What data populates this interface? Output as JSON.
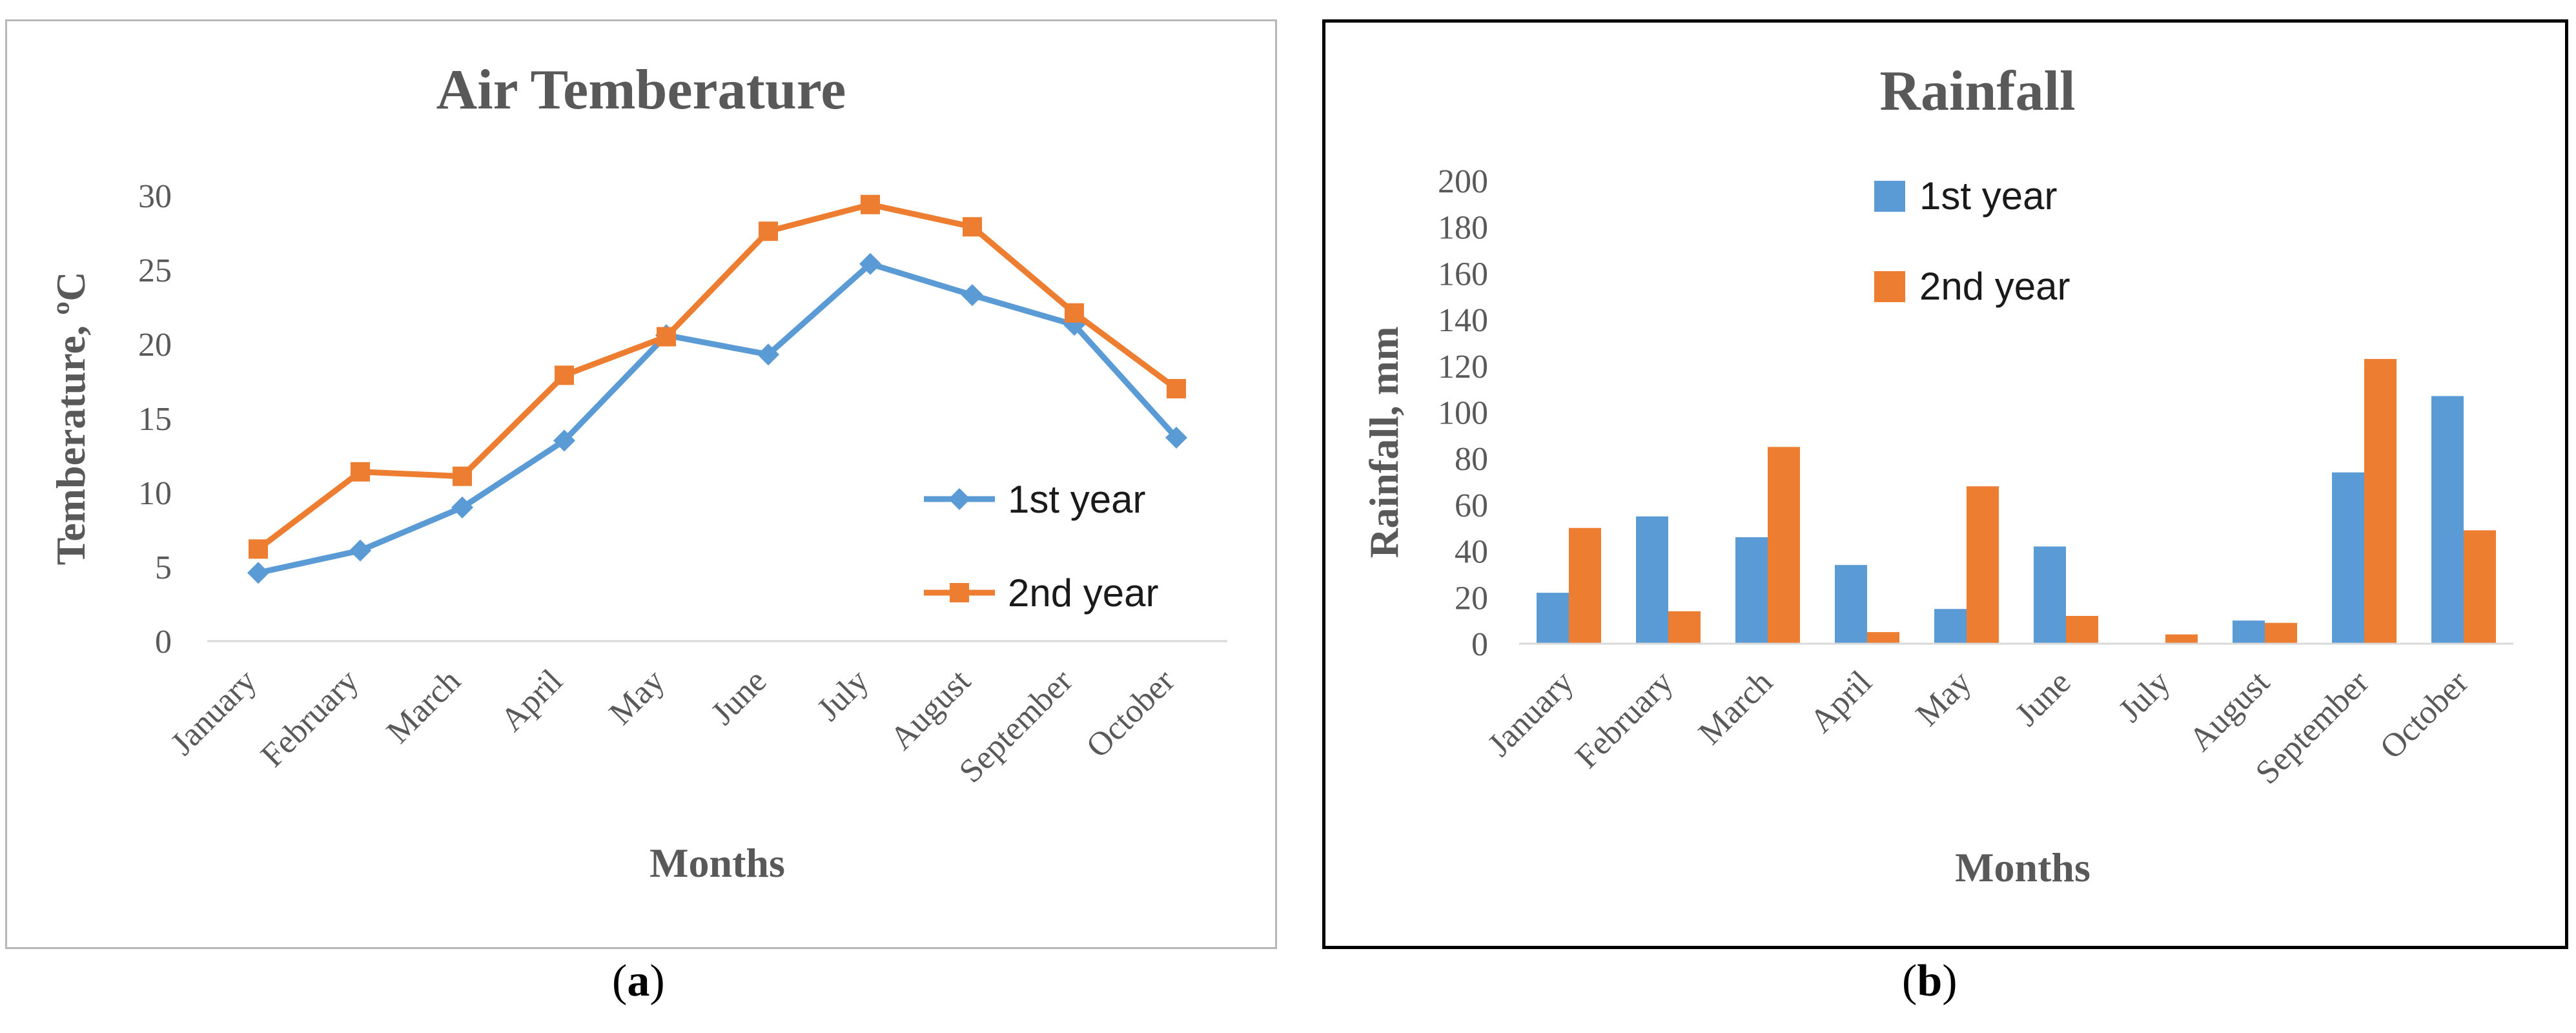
{
  "chart_data": [
    {
      "type": "line",
      "title": "Air Temberature",
      "xlabel": "Months",
      "ylabel": "Temberature, ºC",
      "ylim": [
        0,
        30
      ],
      "yticks": [
        "0",
        "5",
        "10",
        "15",
        "20",
        "25",
        "30"
      ],
      "categories": [
        "January",
        "February",
        "March",
        "April",
        "May",
        "June",
        "July",
        "August",
        "September",
        "October"
      ],
      "legend_position": "right",
      "series": [
        {
          "name": "1st year",
          "color": "#5b9bd5",
          "marker": "diamond",
          "values": [
            4.6,
            6.1,
            9.0,
            13.5,
            20.6,
            19.3,
            25.4,
            23.3,
            21.3,
            13.7
          ]
        },
        {
          "name": "2nd year",
          "color": "#ed7d31",
          "marker": "square",
          "values": [
            6.2,
            11.4,
            11.1,
            17.9,
            20.5,
            27.6,
            29.4,
            27.9,
            22.1,
            17.0
          ]
        }
      ],
      "panel_label": "a"
    },
    {
      "type": "bar",
      "title": "Rainfall",
      "xlabel": "Months",
      "ylabel": "Rainfall, mm",
      "ylim": [
        0,
        200
      ],
      "yticks": [
        "0",
        "20",
        "40",
        "60",
        "80",
        "100",
        "120",
        "140",
        "160",
        "180",
        "200"
      ],
      "categories": [
        "January",
        "February",
        "March",
        "April",
        "May",
        "June",
        "July",
        "August",
        "September",
        "October"
      ],
      "legend_position": "top-center",
      "series": [
        {
          "name": "1st year",
          "color": "#5b9bd5",
          "values": [
            22,
            55,
            46,
            34,
            15,
            42,
            0,
            10,
            74,
            107
          ]
        },
        {
          "name": "2nd year",
          "color": "#ed7d31",
          "values": [
            50,
            14,
            85,
            5,
            68,
            12,
            4,
            9,
            123,
            49
          ]
        }
      ],
      "panel_label": "b"
    }
  ]
}
